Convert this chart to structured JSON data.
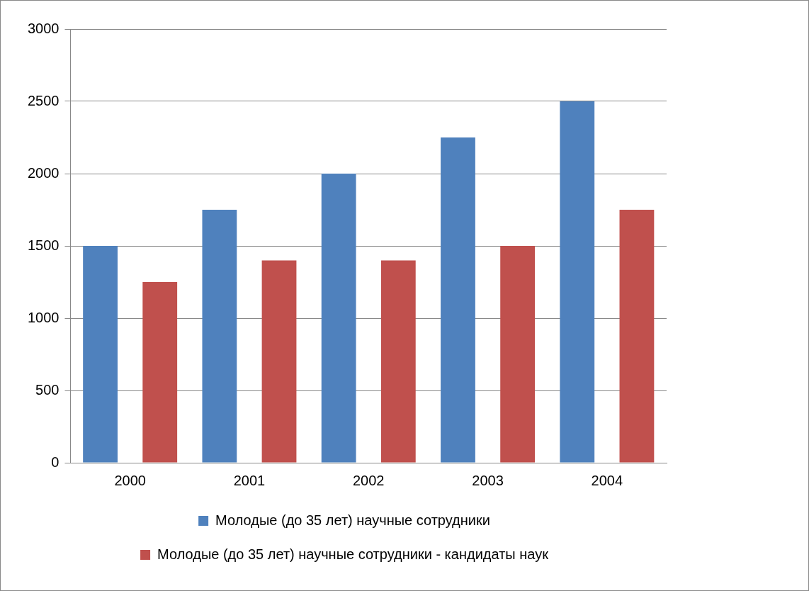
{
  "chart_data": {
    "type": "bar",
    "categories": [
      "2000",
      "2001",
      "2002",
      "2003",
      "2004"
    ],
    "series": [
      {
        "name": "Молодые (до 35 лет) научные сотрудники",
        "color": "#4f81bd",
        "values": [
          1500,
          1750,
          2000,
          2250,
          2500
        ]
      },
      {
        "name": "Молодые (до 35 лет) научные сотрудники - кандидаты наук",
        "color": "#c0504d",
        "values": [
          1250,
          1400,
          1400,
          1500,
          1750
        ]
      }
    ],
    "ylim": [
      0,
      3000
    ],
    "yticks": [
      0,
      500,
      1000,
      1500,
      2000,
      2500,
      3000
    ],
    "grid": "y",
    "legend": "bottom"
  }
}
